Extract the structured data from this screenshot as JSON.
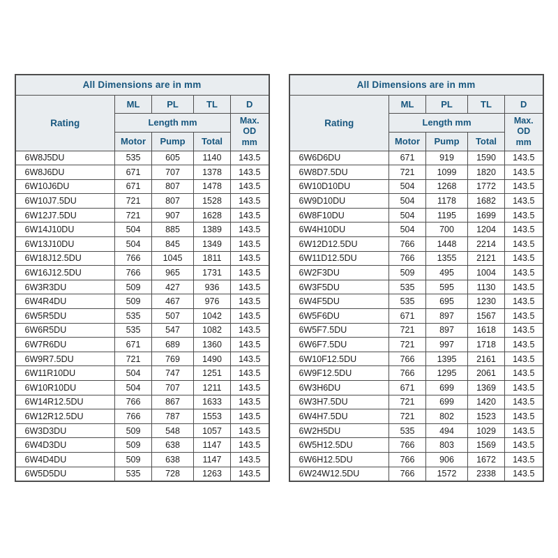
{
  "colors": {
    "header_bg": "#e9edf0",
    "header_text": "#17567e",
    "data_text": "#1c1c1c",
    "border": "#4c4c4c",
    "page_bg": "#ffffff"
  },
  "tables": [
    {
      "title": "All Dimensions are in mm",
      "columns": {
        "rating": "Rating",
        "ml": "ML",
        "pl": "PL",
        "tl": "TL",
        "d": "D",
        "length_group": "Length mm",
        "motor": "Motor",
        "pump": "Pump",
        "total": "Total",
        "max_od": "Max.\nOD\nmm"
      },
      "rows": [
        [
          "6W8J5DU",
          "535",
          "605",
          "1140",
          "143.5"
        ],
        [
          "6W8J6DU",
          "671",
          "707",
          "1378",
          "143.5"
        ],
        [
          "6W10J6DU",
          "671",
          "807",
          "1478",
          "143.5"
        ],
        [
          "6W10J7.5DU",
          "721",
          "807",
          "1528",
          "143.5"
        ],
        [
          "6W12J7.5DU",
          "721",
          "907",
          "1628",
          "143.5"
        ],
        [
          "6W14J10DU",
          "504",
          "885",
          "1389",
          "143.5"
        ],
        [
          "6W13J10DU",
          "504",
          "845",
          "1349",
          "143.5"
        ],
        [
          "6W18J12.5DU",
          "766",
          "1045",
          "1811",
          "143.5"
        ],
        [
          "6W16J12.5DU",
          "766",
          "965",
          "1731",
          "143.5"
        ],
        [
          "6W3R3DU",
          "509",
          "427",
          "936",
          "143.5"
        ],
        [
          "6W4R4DU",
          "509",
          "467",
          "976",
          "143.5"
        ],
        [
          "6W5R5DU",
          "535",
          "507",
          "1042",
          "143.5"
        ],
        [
          "6W6R5DU",
          "535",
          "547",
          "1082",
          "143.5"
        ],
        [
          "6W7R6DU",
          "671",
          "689",
          "1360",
          "143.5"
        ],
        [
          "6W9R7.5DU",
          "721",
          "769",
          "1490",
          "143.5"
        ],
        [
          "6W11R10DU",
          "504",
          "747",
          "1251",
          "143.5"
        ],
        [
          "6W10R10DU",
          "504",
          "707",
          "1211",
          "143.5"
        ],
        [
          "6W14R12.5DU",
          "766",
          "867",
          "1633",
          "143.5"
        ],
        [
          "6W12R12.5DU",
          "766",
          "787",
          "1553",
          "143.5"
        ],
        [
          "6W3D3DU",
          "509",
          "548",
          "1057",
          "143.5"
        ],
        [
          "6W4D3DU",
          "509",
          "638",
          "1147",
          "143.5"
        ],
        [
          "6W4D4DU",
          "509",
          "638",
          "1147",
          "143.5"
        ],
        [
          "6W5D5DU",
          "535",
          "728",
          "1263",
          "143.5"
        ]
      ]
    },
    {
      "title": "All Dimensions are in mm",
      "columns": {
        "rating": "Rating",
        "ml": "ML",
        "pl": "PL",
        "tl": "TL",
        "d": "D",
        "length_group": "Length mm",
        "motor": "Motor",
        "pump": "Pump",
        "total": "Total",
        "max_od": "Max.\nOD\nmm"
      },
      "rows": [
        [
          "6W6D6DU",
          "671",
          "919",
          "1590",
          "143.5"
        ],
        [
          "6W8D7.5DU",
          "721",
          "1099",
          "1820",
          "143.5"
        ],
        [
          "6W10D10DU",
          "504",
          "1268",
          "1772",
          "143.5"
        ],
        [
          "6W9D10DU",
          "504",
          "1178",
          "1682",
          "143.5"
        ],
        [
          "6W8F10DU",
          "504",
          "1195",
          "1699",
          "143.5"
        ],
        [
          "6W4H10DU",
          "504",
          "700",
          "1204",
          "143.5"
        ],
        [
          "6W12D12.5DU",
          "766",
          "1448",
          "2214",
          "143.5"
        ],
        [
          "6W11D12.5DU",
          "766",
          "1355",
          "2121",
          "143.5"
        ],
        [
          "6W2F3DU",
          "509",
          "495",
          "1004",
          "143.5"
        ],
        [
          "6W3F5DU",
          "535",
          "595",
          "1130",
          "143.5"
        ],
        [
          "6W4F5DU",
          "535",
          "695",
          "1230",
          "143.5"
        ],
        [
          "6W5F6DU",
          "671",
          "897",
          "1567",
          "143.5"
        ],
        [
          "6W5F7.5DU",
          "721",
          "897",
          "1618",
          "143.5"
        ],
        [
          "6W6F7.5DU",
          "721",
          "997",
          "1718",
          "143.5"
        ],
        [
          "6W10F12.5DU",
          "766",
          "1395",
          "2161",
          "143.5"
        ],
        [
          "6W9F12.5DU",
          "766",
          "1295",
          "2061",
          "143.5"
        ],
        [
          "6W3H6DU",
          "671",
          "699",
          "1369",
          "143.5"
        ],
        [
          "6W3H7.5DU",
          "721",
          "699",
          "1420",
          "143.5"
        ],
        [
          "6W4H7.5DU",
          "721",
          "802",
          "1523",
          "143.5"
        ],
        [
          "6W2H5DU",
          "535",
          "494",
          "1029",
          "143.5"
        ],
        [
          "6W5H12.5DU",
          "766",
          "803",
          "1569",
          "143.5"
        ],
        [
          "6W6H12.5DU",
          "766",
          "906",
          "1672",
          "143.5"
        ],
        [
          "6W24W12.5DU",
          "766",
          "1572",
          "2338",
          "143.5"
        ]
      ]
    }
  ]
}
